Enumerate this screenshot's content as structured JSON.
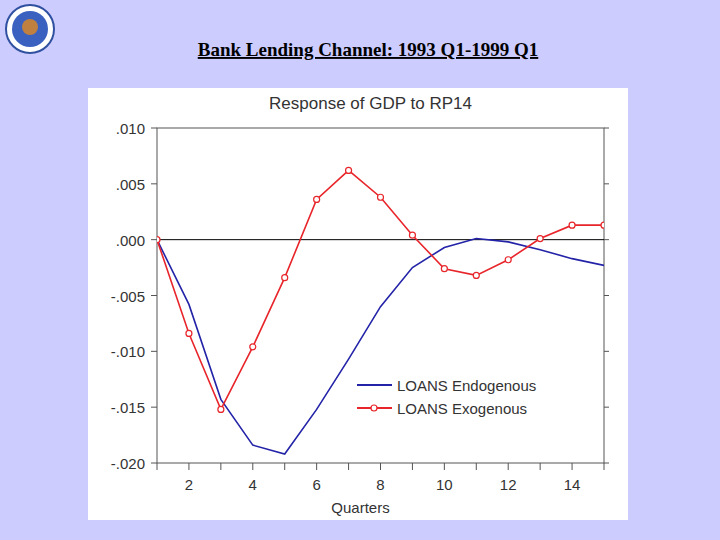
{
  "slide": {
    "title": "Bank Lending Channel: 1993 Q1-1999 Q1"
  },
  "chart_data": {
    "type": "line",
    "title": "Response of GDP to RP14",
    "x_label": "Quarters",
    "x": [
      1,
      2,
      3,
      4,
      5,
      6,
      7,
      8,
      9,
      10,
      11,
      12,
      13,
      14,
      15
    ],
    "series": [
      {
        "name": "LOANS Endogenous",
        "color": "#2323a8",
        "marker": "none",
        "line_style": "solid",
        "values": [
          0,
          -0.0058,
          -0.0143,
          -0.0184,
          -0.0192,
          -0.0152,
          -0.0107,
          -0.006,
          -0.0025,
          -0.0007,
          0.0001,
          -0.0002,
          -0.0009,
          -0.0017,
          -0.0023
        ]
      },
      {
        "name": "LOANS Exogenous",
        "color": "#e8252a",
        "marker": "circle",
        "line_style": "solid",
        "values": [
          0,
          -0.0084,
          -0.0152,
          -0.0096,
          -0.0034,
          0.0036,
          0.0062,
          0.0038,
          0.0004,
          -0.0026,
          -0.0032,
          -0.0018,
          0.0001,
          0.0013,
          0.0013
        ]
      }
    ],
    "xlim": [
      1,
      15
    ],
    "xticks": [
      2,
      4,
      6,
      8,
      10,
      12,
      14
    ],
    "ylim": [
      -0.02,
      0.01
    ],
    "yticks": [
      {
        "value": 0.01,
        "label": ".010"
      },
      {
        "value": 0.005,
        "label": ".005"
      },
      {
        "value": 0,
        "label": ".000"
      },
      {
        "value": -0.005,
        "label": "-.005"
      },
      {
        "value": -0.01,
        "label": "-.010"
      },
      {
        "value": -0.015,
        "label": "-.015"
      },
      {
        "value": -0.02,
        "label": "-.020"
      }
    ],
    "grid": false,
    "legend": "lower right"
  }
}
